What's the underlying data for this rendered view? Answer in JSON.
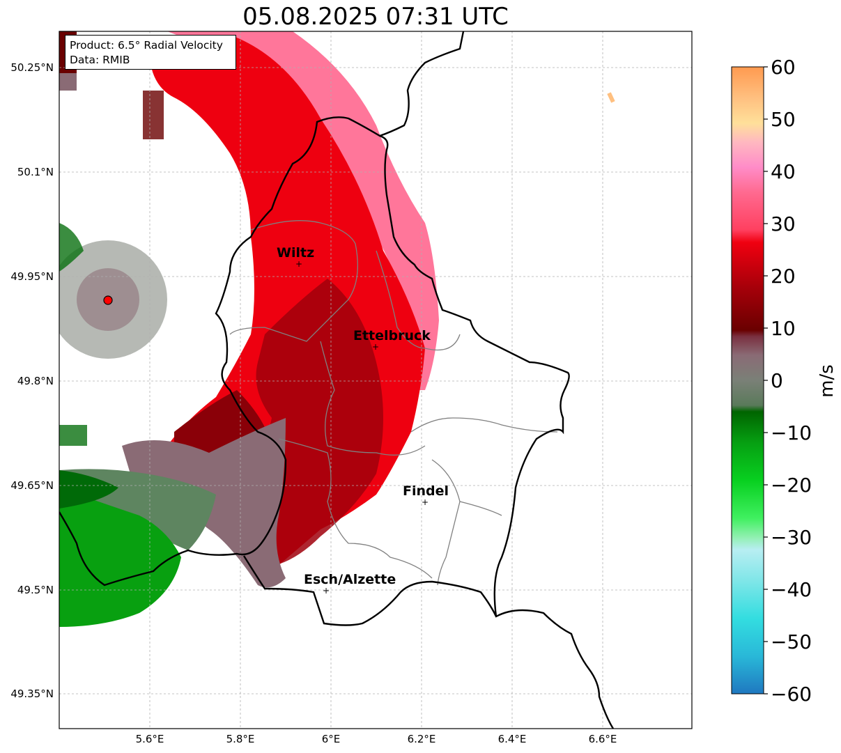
{
  "title": "05.08.2025 07:31 UTC",
  "info": {
    "product": "Product: 6.5° Radial Velocity",
    "source": "Data: RMIB"
  },
  "axes": {
    "lat_labels": [
      "50.25°N",
      "50.1°N",
      "49.95°N",
      "49.8°N",
      "49.65°N",
      "49.5°N",
      "49.35°N"
    ],
    "lon_labels": [
      "5.6°E",
      "5.8°E",
      "6°E",
      "6.2°E",
      "6.4°E",
      "6.6°E"
    ]
  },
  "cities": [
    {
      "name": "Wiltz"
    },
    {
      "name": "Ettelbruck"
    },
    {
      "name": "Findel"
    },
    {
      "name": "Esch/Alzette"
    }
  ],
  "colorbar": {
    "unit": "m/s",
    "ticks": [
      "60",
      "50",
      "40",
      "30",
      "20",
      "10",
      "0",
      "−10",
      "−20",
      "−30",
      "−40",
      "−50",
      "−60"
    ]
  },
  "colors": {
    "strong_outbound": "#f00010",
    "dark_outbound": "#a0000c",
    "pink": "#ff5a80",
    "neutral_mauve": "#8a6b75",
    "neutral_green": "#5e8560",
    "inbound_green": "#0aa010",
    "radar_site": "#ff0000"
  }
}
